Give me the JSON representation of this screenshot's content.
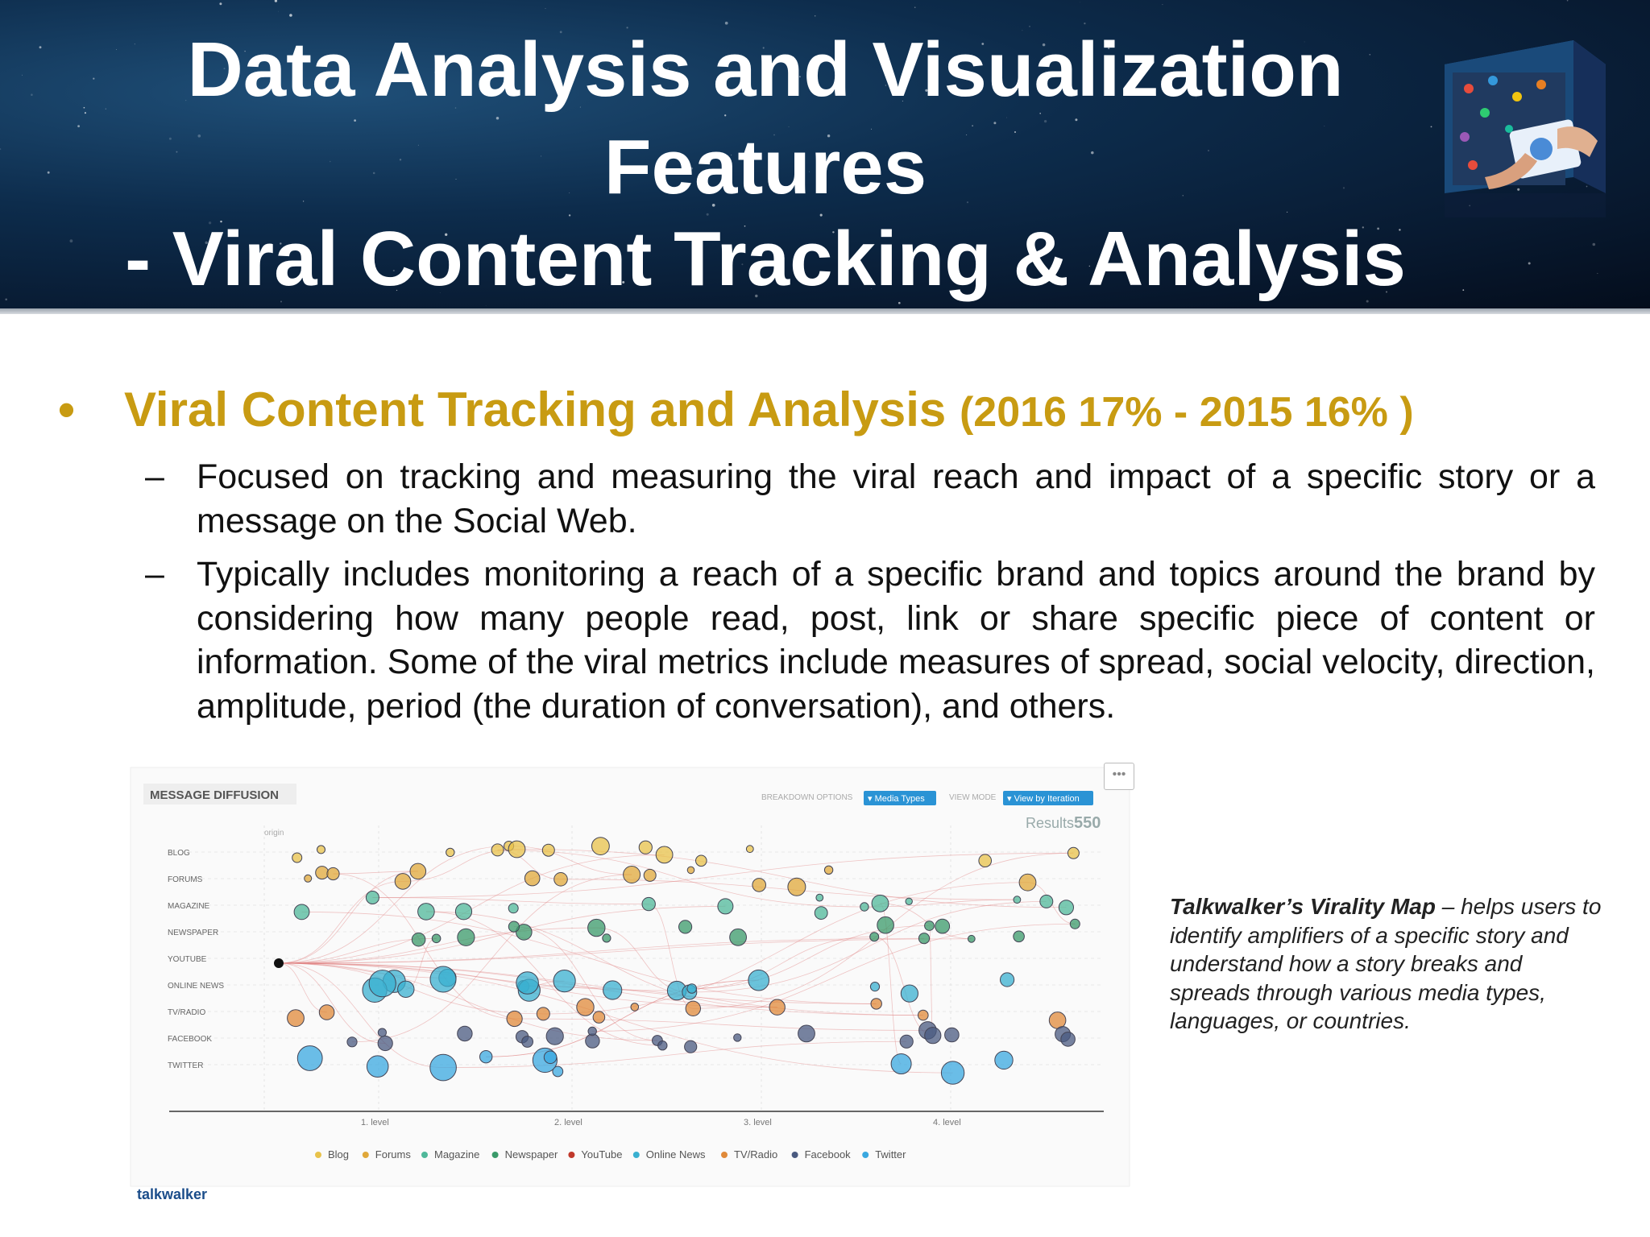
{
  "header": {
    "title_line1": "Data Analysis and Visualization",
    "title_line2": "Features",
    "title_line3": "- Viral Content Tracking & Analysis"
  },
  "bullet": {
    "symbol": "•",
    "heading": "Viral Content Tracking and Analysis",
    "years": "(2016 17% - 2015 16% )"
  },
  "subpoints": [
    {
      "dash": "–",
      "text": "Focused on tracking and measuring the viral reach and impact of a specific story or a message on the Social Web."
    },
    {
      "dash": "–",
      "text": "Typically includes monitoring a reach of a specific brand and topics around the brand by considering how many people read, post, link or share specific piece of content or information. Some of the viral metrics include measures of  spread, social velocity, direction, amplitude, period (the duration of conversation), and others."
    }
  ],
  "chart": {
    "title": "MESSAGE DIFFUSION",
    "breakdown_label": "BREAKDOWN OPTIONS",
    "breakdown_value": "▾ Media Types",
    "view_mode_label": "VIEW MODE",
    "view_mode_value": "▾ View by Iteration",
    "results_label": "Results",
    "results_value": "550",
    "origin_label": "origin",
    "menu_symbol": "•••",
    "rows": [
      "BLOG",
      "FORUMS",
      "MAGAZINE",
      "NEWSPAPER",
      "YOUTUBE",
      "ONLINE NEWS",
      "TV/RADIO",
      "FACEBOOK",
      "TWITTER"
    ],
    "levels": [
      "1. level",
      "2. level",
      "3. level",
      "4. level"
    ],
    "legend": [
      {
        "name": "Blog",
        "color": "#e8c24a"
      },
      {
        "name": "Forums",
        "color": "#e0a83a"
      },
      {
        "name": "Magazine",
        "color": "#4fb89a"
      },
      {
        "name": "Newspaper",
        "color": "#3a9a6a"
      },
      {
        "name": "YouTube",
        "color": "#c0392b"
      },
      {
        "name": "Online News",
        "color": "#3ab0d0"
      },
      {
        "name": "TV/Radio",
        "color": "#e08a3a"
      },
      {
        "name": "Facebook",
        "color": "#4a5a80"
      },
      {
        "name": "Twitter",
        "color": "#3aa8e0"
      }
    ],
    "logo_text": "talkwalker"
  },
  "caption": {
    "bold": "Talkwalker’s Virality Map",
    "rest": " – helps users to identify amplifiers of a specific story and understand how a story breaks and spreads through various media types, languages, or countries."
  }
}
